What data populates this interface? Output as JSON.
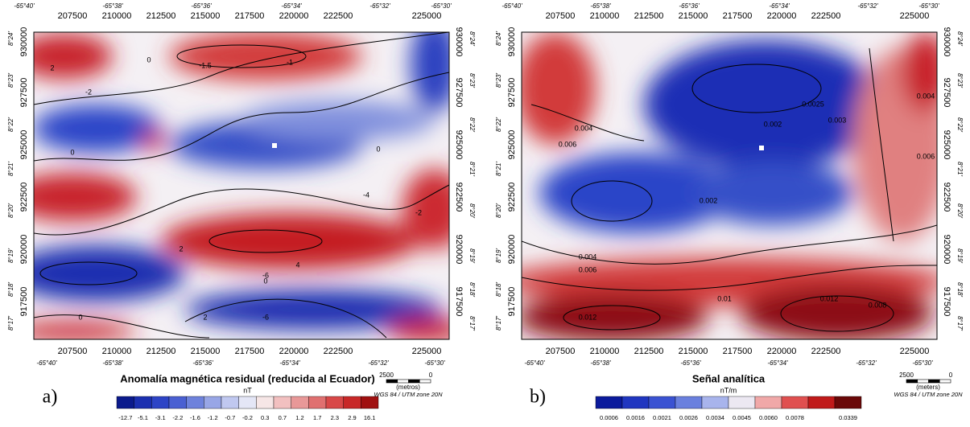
{
  "panels": [
    {
      "label": "a)",
      "x_utm": [
        "207500",
        "210000",
        "212500",
        "215000",
        "217500",
        "220000",
        "222500",
        "225000"
      ],
      "x_geo": [
        "-65°40'",
        "-65°38'",
        "-65°36'",
        "-65°34'",
        "-65°32'",
        "-65°30'"
      ],
      "y_utm": [
        "930000",
        "927500",
        "925000",
        "922500",
        "920000",
        "917500"
      ],
      "y_geo": [
        "8°24'",
        "8°23'",
        "8°22'",
        "8°21'",
        "8°20'",
        "8°19'",
        "8°18'",
        "8°17'"
      ],
      "contour_labels": [
        "2",
        "-1.5",
        "-1",
        "0",
        "-2",
        "0",
        "0",
        "2",
        "4",
        "-6",
        "-2",
        "2",
        "0",
        "-6",
        "0",
        "-4"
      ],
      "colorbar": {
        "title": "Anomalía magnética residual (reducida al Ecuador)",
        "unit": "nT",
        "ticks": [
          "-12.7",
          "-5.1",
          "-3.1",
          "-2.2",
          "-1.6",
          "-1.2",
          "-0.7",
          "-0.2",
          "0.3",
          "0.7",
          "1.2",
          "1.7",
          "2.3",
          "2.9",
          "16.1"
        ]
      },
      "scale": {
        "left": "2500",
        "right": "0",
        "unit": "(metros)",
        "datum": "WGS 84 / UTM zone 20N"
      }
    },
    {
      "label": "b)",
      "x_utm": [
        "207500",
        "210000",
        "212500",
        "215000",
        "217500",
        "220000",
        "222500",
        "225000"
      ],
      "x_geo": [
        "-65°40'",
        "-65°38'",
        "-65°36'",
        "-65°34'",
        "-65°32'",
        "-65°30'"
      ],
      "y_utm": [
        "930000",
        "927500",
        "925000",
        "922500",
        "920000",
        "917500"
      ],
      "y_geo": [
        "8°24'",
        "8°23'",
        "8°22'",
        "8°21'",
        "8°20'",
        "8°19'",
        "8°18'",
        "8°17'"
      ],
      "contour_labels": [
        "0.004",
        "0.006",
        "0.002",
        "0.0025",
        "0.003",
        "0.004",
        "0.006",
        "0.002",
        "0.004",
        "0.006",
        "0.01",
        "0.012",
        "0.012",
        "0.008"
      ],
      "colorbar": {
        "title": "Señal analítica",
        "unit": "nT/m",
        "ticks": [
          "0.0006",
          "0.0016",
          "0.0021",
          "0.0026",
          "0.0034",
          "0.0045",
          "0.0060",
          "0.0078",
          "0.0339"
        ]
      },
      "scale": {
        "left": "2500",
        "right": "0",
        "unit": "(meters)",
        "datum": "WGS 84 / UTM zone 20N"
      }
    }
  ]
}
